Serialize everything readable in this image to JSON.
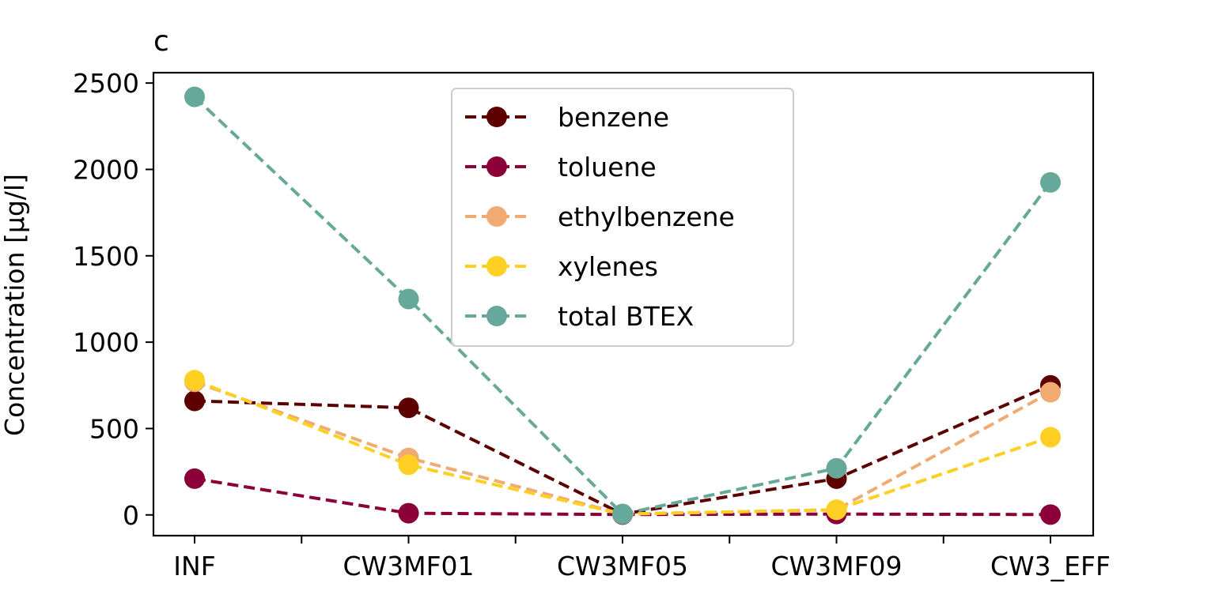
{
  "chart_data": {
    "type": "line",
    "title": "c",
    "xlabel": "",
    "ylabel": "Concentration [µg/l]",
    "categories": [
      "INF",
      "CW3MF01",
      "CW3MF05",
      "CW3MF09",
      "CW3_EFF"
    ],
    "ylim": [
      -120,
      2560
    ],
    "yticks": [
      0,
      500,
      1000,
      1500,
      2000,
      2500
    ],
    "grid": false,
    "legend_position": "top-center",
    "line_style": "dashed",
    "marker": "circle",
    "series": [
      {
        "name": "benzene",
        "color": "#5c0000",
        "values": [
          660,
          620,
          5,
          210,
          750
        ]
      },
      {
        "name": "toluene",
        "color": "#8b0038",
        "values": [
          210,
          10,
          2,
          5,
          2
        ]
      },
      {
        "name": "ethylbenzene",
        "color": "#f0aa72",
        "values": [
          770,
          330,
          5,
          30,
          710
        ]
      },
      {
        "name": "xylenes",
        "color": "#fdd023",
        "values": [
          780,
          290,
          5,
          30,
          450
        ]
      },
      {
        "name": "total BTEX",
        "color": "#66a899",
        "values": [
          2420,
          1250,
          5,
          270,
          1925
        ]
      }
    ]
  }
}
